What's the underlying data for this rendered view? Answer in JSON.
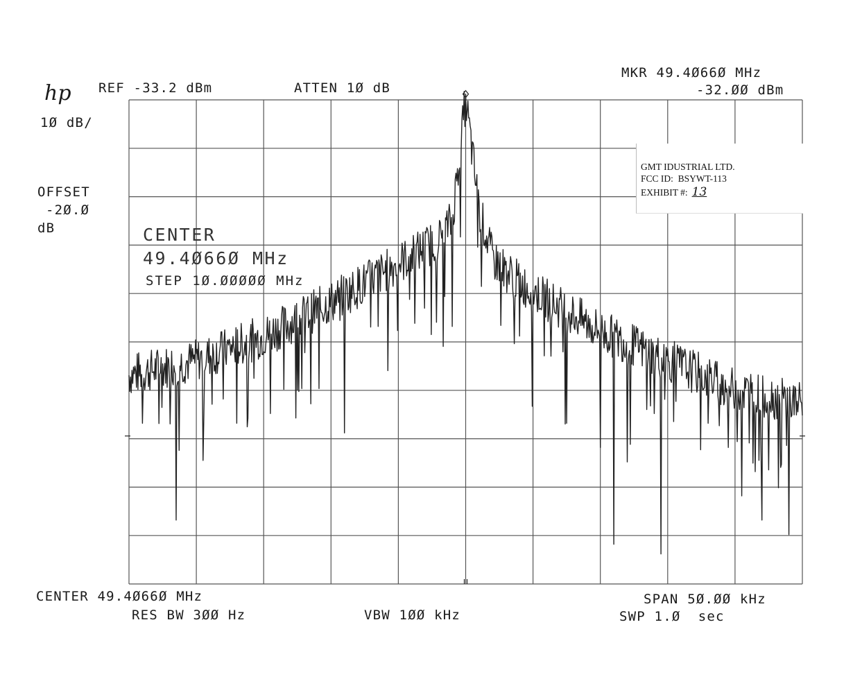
{
  "header": {
    "logo": "hp",
    "ref": "REF -33.2 dBm",
    "atten": "ATTEN 1Ø dB",
    "scale": "1Ø dB/",
    "offset_label": "OFFSET",
    "offset_value": "-2Ø.Ø",
    "offset_unit": "dB",
    "marker_freq": "MKR 49.4Ø66Ø MHz",
    "marker_level": "-32.ØØ dBm"
  },
  "overlay": {
    "title": "CENTER",
    "freq": "49.4Ø66Ø MHz",
    "step": "STEP 1Ø.ØØØØØ MHz"
  },
  "footer": {
    "center": "CENTER 49.4Ø66Ø MHz",
    "span": "SPAN 5Ø.ØØ kHz",
    "res_bw": "RES BW 3ØØ Hz",
    "vbw": "VBW 1ØØ kHz",
    "sweep": "SWP 1.Ø  sec"
  },
  "stamp": {
    "company": "GMT IDUSTRIAL LTD.",
    "fcc_id": "FCC ID:  BSYWT-113",
    "exhibit_label": "EXHIBIT #:",
    "exhibit_number": "13"
  },
  "chart_data": {
    "type": "line",
    "x_unit": "kHz offset from center",
    "y_unit": "dBm",
    "xlim": [
      -25,
      25
    ],
    "ylim": [
      -133.2,
      -33.2
    ],
    "x_divisions": 10,
    "y_divisions": 10,
    "grid": true,
    "marker": {
      "x": 0,
      "y": -32.0
    },
    "envelope": [
      {
        "x": -25,
        "y": -90
      },
      {
        "x": -20,
        "y": -87
      },
      {
        "x": -15,
        "y": -82
      },
      {
        "x": -10,
        "y": -75
      },
      {
        "x": -5,
        "y": -67
      },
      {
        "x": -2,
        "y": -62
      },
      {
        "x": -1,
        "y": -58
      },
      {
        "x": 0,
        "y": -33
      },
      {
        "x": 1,
        "y": -56
      },
      {
        "x": 2,
        "y": -66
      },
      {
        "x": 4,
        "y": -71
      },
      {
        "x": 10,
        "y": -81
      },
      {
        "x": 15,
        "y": -87
      },
      {
        "x": 20,
        "y": -93
      },
      {
        "x": 25,
        "y": -96
      }
    ],
    "dips": [
      {
        "x": -24,
        "y": -100
      },
      {
        "x": -21.5,
        "y": -120
      },
      {
        "x": -18,
        "y": -95
      },
      {
        "x": -17,
        "y": -100
      },
      {
        "x": -14.5,
        "y": -98
      },
      {
        "x": -13.5,
        "y": -93
      },
      {
        "x": -11.5,
        "y": -96
      },
      {
        "x": -9,
        "y": -102
      },
      {
        "x": -6.5,
        "y": -80
      },
      {
        "x": -1,
        "y": -80
      },
      {
        "x": 4,
        "y": -82
      },
      {
        "x": 7.5,
        "y": -100
      },
      {
        "x": 10,
        "y": -105
      },
      {
        "x": 11,
        "y": -125
      },
      {
        "x": 12,
        "y": -108
      },
      {
        "x": 14,
        "y": -98
      },
      {
        "x": 14.5,
        "y": -127
      },
      {
        "x": 18,
        "y": -100
      },
      {
        "x": 19.5,
        "y": -105
      },
      {
        "x": 20.5,
        "y": -115
      },
      {
        "x": 21.5,
        "y": -110
      },
      {
        "x": 22,
        "y": -120
      },
      {
        "x": 24,
        "y": -123
      }
    ]
  }
}
